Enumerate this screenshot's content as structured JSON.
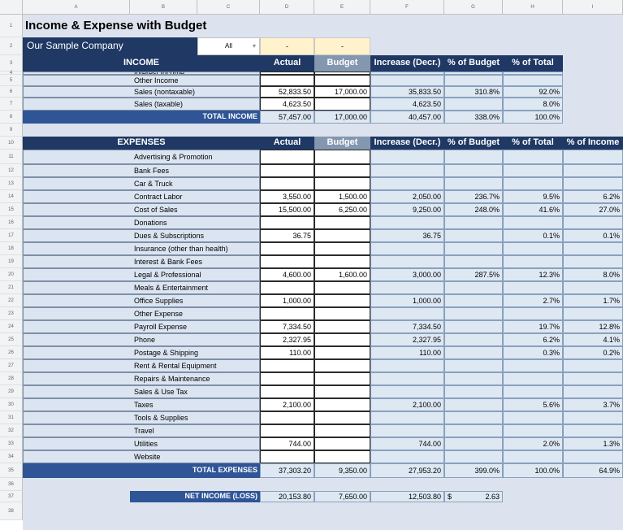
{
  "columns": [
    "A",
    "B",
    "C",
    "D",
    "E",
    "F",
    "G",
    "H",
    "I"
  ],
  "rows": [
    "1",
    "2",
    "3",
    "4",
    "5",
    "6",
    "7",
    "8",
    "9",
    "10",
    "11",
    "12",
    "13",
    "14",
    "15",
    "16",
    "17",
    "18",
    "19",
    "20",
    "21",
    "22",
    "23",
    "24",
    "25",
    "26",
    "27",
    "28",
    "29",
    "30",
    "31",
    "32",
    "33",
    "34",
    "35",
    "36",
    "37",
    "38"
  ],
  "title": "Income & Expense with Budget",
  "company": "Our Sample Company",
  "filter": {
    "value": "All",
    "cell_e": "-",
    "cell_f": "-"
  },
  "income_headers": {
    "section": "INCOME",
    "actual": "Actual",
    "budget": "Budget",
    "increase": "Increase (Decr.)",
    "pct_budget": "% of Budget",
    "pct_total": "% of Total"
  },
  "income_items": [
    {
      "label": "Interest Income",
      "actual": "",
      "budget": "",
      "increase": "",
      "pct_budget": "",
      "pct_total": ""
    },
    {
      "label": "Other Income",
      "actual": "",
      "budget": "",
      "increase": "",
      "pct_budget": "",
      "pct_total": ""
    },
    {
      "label": "Sales (nontaxable)",
      "actual": "52,833.50",
      "budget": "17,000.00",
      "increase": "35,833.50",
      "pct_budget": "310.8%",
      "pct_total": "92.0%"
    },
    {
      "label": "Sales (taxable)",
      "actual": "4,623.50",
      "budget": "",
      "increase": "4,623.50",
      "pct_budget": "",
      "pct_total": "8.0%"
    }
  ],
  "income_total": {
    "label": "TOTAL INCOME",
    "actual": "57,457.00",
    "budget": "17,000.00",
    "increase": "40,457.00",
    "pct_budget": "338.0%",
    "pct_total": "100.0%"
  },
  "expense_headers": {
    "section": "EXPENSES",
    "actual": "Actual",
    "budget": "Budget",
    "increase": "Increase (Decr.)",
    "pct_budget": "% of Budget",
    "pct_total": "% of Total",
    "pct_income": "% of Income"
  },
  "expense_items": [
    {
      "label": "Advertising & Promotion",
      "actual": "",
      "budget": "",
      "increase": "",
      "pct_budget": "",
      "pct_total": "",
      "pct_income": ""
    },
    {
      "label": "Bank Fees",
      "actual": "",
      "budget": "",
      "increase": "",
      "pct_budget": "",
      "pct_total": "",
      "pct_income": ""
    },
    {
      "label": "Car & Truck",
      "actual": "",
      "budget": "",
      "increase": "",
      "pct_budget": "",
      "pct_total": "",
      "pct_income": ""
    },
    {
      "label": "Contract Labor",
      "actual": "3,550.00",
      "budget": "1,500.00",
      "increase": "2,050.00",
      "pct_budget": "236.7%",
      "pct_total": "9.5%",
      "pct_income": "6.2%"
    },
    {
      "label": "Cost of Sales",
      "actual": "15,500.00",
      "budget": "6,250.00",
      "increase": "9,250.00",
      "pct_budget": "248.0%",
      "pct_total": "41.6%",
      "pct_income": "27.0%"
    },
    {
      "label": "Donations",
      "actual": "",
      "budget": "",
      "increase": "",
      "pct_budget": "",
      "pct_total": "",
      "pct_income": ""
    },
    {
      "label": "Dues & Subscriptions",
      "actual": "36.75",
      "budget": "",
      "increase": "36.75",
      "pct_budget": "",
      "pct_total": "0.1%",
      "pct_income": "0.1%"
    },
    {
      "label": "Insurance (other than health)",
      "actual": "",
      "budget": "",
      "increase": "",
      "pct_budget": "",
      "pct_total": "",
      "pct_income": ""
    },
    {
      "label": "Interest & Bank Fees",
      "actual": "",
      "budget": "",
      "increase": "",
      "pct_budget": "",
      "pct_total": "",
      "pct_income": ""
    },
    {
      "label": "Legal & Professional",
      "actual": "4,600.00",
      "budget": "1,600.00",
      "increase": "3,000.00",
      "pct_budget": "287.5%",
      "pct_total": "12.3%",
      "pct_income": "8.0%"
    },
    {
      "label": "Meals & Entertainment",
      "actual": "",
      "budget": "",
      "increase": "",
      "pct_budget": "",
      "pct_total": "",
      "pct_income": ""
    },
    {
      "label": "Office Supplies",
      "actual": "1,000.00",
      "budget": "",
      "increase": "1,000.00",
      "pct_budget": "",
      "pct_total": "2.7%",
      "pct_income": "1.7%"
    },
    {
      "label": "Other Expense",
      "actual": "",
      "budget": "",
      "increase": "",
      "pct_budget": "",
      "pct_total": "",
      "pct_income": ""
    },
    {
      "label": "Payroll Expense",
      "actual": "7,334.50",
      "budget": "",
      "increase": "7,334.50",
      "pct_budget": "",
      "pct_total": "19.7%",
      "pct_income": "12.8%"
    },
    {
      "label": "Phone",
      "actual": "2,327.95",
      "budget": "",
      "increase": "2,327.95",
      "pct_budget": "",
      "pct_total": "6.2%",
      "pct_income": "4.1%"
    },
    {
      "label": "Postage & Shipping",
      "actual": "110.00",
      "budget": "",
      "increase": "110.00",
      "pct_budget": "",
      "pct_total": "0.3%",
      "pct_income": "0.2%"
    },
    {
      "label": "Rent & Rental Equipment",
      "actual": "",
      "budget": "",
      "increase": "",
      "pct_budget": "",
      "pct_total": "",
      "pct_income": ""
    },
    {
      "label": "Repairs & Maintenance",
      "actual": "",
      "budget": "",
      "increase": "",
      "pct_budget": "",
      "pct_total": "",
      "pct_income": ""
    },
    {
      "label": "Sales & Use Tax",
      "actual": "",
      "budget": "",
      "increase": "",
      "pct_budget": "",
      "pct_total": "",
      "pct_income": ""
    },
    {
      "label": "Taxes",
      "actual": "2,100.00",
      "budget": "",
      "increase": "2,100.00",
      "pct_budget": "",
      "pct_total": "5.6%",
      "pct_income": "3.7%"
    },
    {
      "label": "Tools & Supplies",
      "actual": "",
      "budget": "",
      "increase": "",
      "pct_budget": "",
      "pct_total": "",
      "pct_income": ""
    },
    {
      "label": "Travel",
      "actual": "",
      "budget": "",
      "increase": "",
      "pct_budget": "",
      "pct_total": "",
      "pct_income": ""
    },
    {
      "label": "Utilities",
      "actual": "744.00",
      "budget": "",
      "increase": "744.00",
      "pct_budget": "",
      "pct_total": "2.0%",
      "pct_income": "1.3%"
    },
    {
      "label": "Website",
      "actual": "",
      "budget": "",
      "increase": "",
      "pct_budget": "",
      "pct_total": "",
      "pct_income": ""
    }
  ],
  "expense_total": {
    "label": "TOTAL EXPENSES",
    "actual": "37,303.20",
    "budget": "9,350.00",
    "increase": "27,953.20",
    "pct_budget": "399.0%",
    "pct_total": "100.0%",
    "pct_income": "64.9%"
  },
  "net_income": {
    "label": "NET INCOME (LOSS)",
    "actual": "20,153.80",
    "budget": "7,650.00",
    "increase": "12,503.80",
    "currency": "$",
    "pct_budget": "2.63"
  },
  "colors": {
    "header_dark": "#1f3864",
    "header_budget": "#8497b0",
    "total": "#2f5597",
    "label_bg": "#dbe5f1",
    "input_bg": "#fff2cc"
  }
}
